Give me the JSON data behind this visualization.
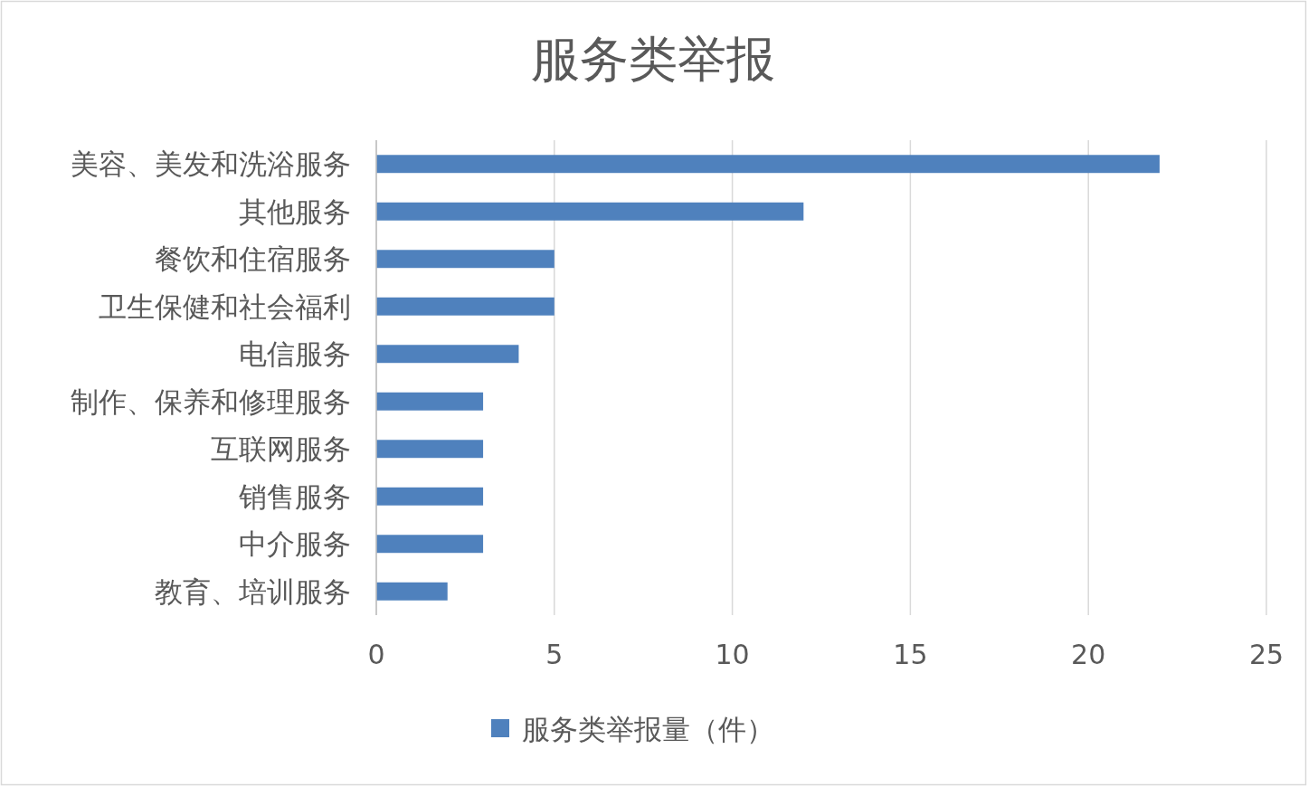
{
  "chart_data": {
    "type": "bar",
    "orientation": "horizontal",
    "title": "服务类举报",
    "categories": [
      "美容、美发和洗浴服务",
      "其他服务",
      "餐饮和住宿服务",
      "卫生保健和社会福利",
      "电信服务",
      "制作、保养和修理服务",
      "互联网服务",
      "销售服务",
      "中介服务",
      "教育、培训服务"
    ],
    "series": [
      {
        "name": "服务类举报量（件）",
        "color": "#4f81bd",
        "values": [
          22,
          12,
          5,
          5,
          4,
          3,
          3,
          3,
          3,
          2
        ]
      }
    ],
    "xlim": [
      0,
      25
    ],
    "xticks": [
      0,
      5,
      10,
      15,
      20,
      25
    ],
    "grid": "x",
    "legend": "bottom"
  }
}
